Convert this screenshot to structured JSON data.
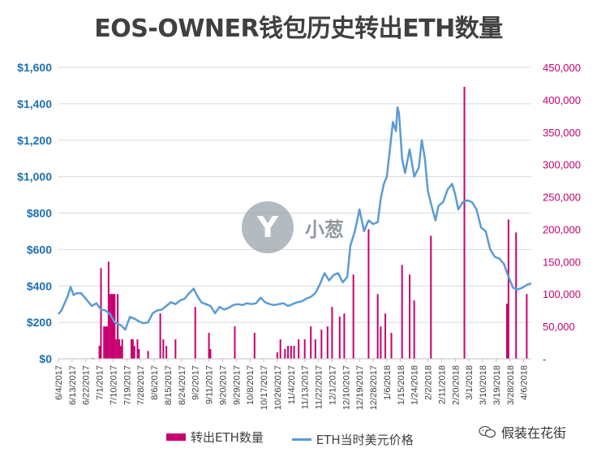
{
  "colors": {
    "bar": "#c8006e",
    "line": "#5b9bd5",
    "left_axis": "#1f6fb0",
    "right_axis": "#c8006e",
    "grid": "#d9d9d9"
  },
  "watermark": {
    "glyph": "Y",
    "text": "小葱"
  },
  "brand": {
    "icon": "wechat-icon",
    "text": "假装在花街"
  },
  "chart_data": {
    "type": "bar",
    "title": "EOS-OWNER钱包历史转出ETH数量",
    "x_tick_labels": [
      "6/4/2017",
      "6/13/2017",
      "6/22/2017",
      "7/1/2017",
      "7/10/2017",
      "7/19/2017",
      "7/28/2017",
      "8/6/2017",
      "8/15/2017",
      "8/24/2017",
      "9/2/2017",
      "9/11/2017",
      "9/20/2017",
      "9/29/2017",
      "10/8/2017",
      "10/17/2017",
      "10/26/2017",
      "11/4/2017",
      "11/13/2017",
      "11/22/2017",
      "12/1/2017",
      "12/10/2017",
      "12/19/2017",
      "12/28/2017",
      "1/6/2018",
      "1/15/2018",
      "1/24/2018",
      "2/2/2018",
      "2/11/2018",
      "2/20/2018",
      "3/1/2018",
      "3/10/2018",
      "3/19/2018",
      "3/28/2018",
      "4/6/2018"
    ],
    "x_start": "2017-06-04",
    "x_end": "2018-04-11",
    "left_axis": {
      "ylim": [
        0,
        1600
      ],
      "ticks": [
        0,
        200,
        400,
        600,
        800,
        1000,
        1200,
        1400,
        1600
      ],
      "tick_labels": [
        "$0",
        "$200",
        "$400",
        "$600",
        "$800",
        "$1,000",
        "$1,200",
        "$1,400",
        "$1,600"
      ]
    },
    "right_axis": {
      "ylim": [
        0,
        450000
      ],
      "ticks": [
        0,
        50000,
        100000,
        150000,
        200000,
        250000,
        300000,
        350000,
        400000,
        450000
      ],
      "tick_labels": [
        "-",
        "50,000",
        "100,000",
        "150,000",
        "200,000",
        "250,000",
        "300,000",
        "350,000",
        "400,000",
        "450,000"
      ]
    },
    "grid": true,
    "legend_position": "bottom",
    "series": [
      {
        "name": "转出ETH数量",
        "type": "bar",
        "axis": "right",
        "points": [
          [
            "2017-06-26",
            1000
          ],
          [
            "2017-06-27",
            1000
          ],
          [
            "2017-07-01",
            20000
          ],
          [
            "2017-07-02",
            140000
          ],
          [
            "2017-07-04",
            50000
          ],
          [
            "2017-07-05",
            50000
          ],
          [
            "2017-07-06",
            50000
          ],
          [
            "2017-07-07",
            150000
          ],
          [
            "2017-07-08",
            100000
          ],
          [
            "2017-07-09",
            100000
          ],
          [
            "2017-07-10",
            100000
          ],
          [
            "2017-07-11",
            100000
          ],
          [
            "2017-07-12",
            30000
          ],
          [
            "2017-07-13",
            100000
          ],
          [
            "2017-07-14",
            30000
          ],
          [
            "2017-07-15",
            20000
          ],
          [
            "2017-07-16",
            30000
          ],
          [
            "2017-07-22",
            30000
          ],
          [
            "2017-07-23",
            30000
          ],
          [
            "2017-07-24",
            20000
          ],
          [
            "2017-07-26",
            30000
          ],
          [
            "2017-07-27",
            15000
          ],
          [
            "2017-08-02",
            12000
          ],
          [
            "2017-08-10",
            70000
          ],
          [
            "2017-08-12",
            30000
          ],
          [
            "2017-08-14",
            20000
          ],
          [
            "2017-08-20",
            30000
          ],
          [
            "2017-09-02",
            80000
          ],
          [
            "2017-09-11",
            40000
          ],
          [
            "2017-09-12",
            15000
          ],
          [
            "2017-09-28",
            50000
          ],
          [
            "2017-10-11",
            40000
          ],
          [
            "2017-10-26",
            10000
          ],
          [
            "2017-10-28",
            30000
          ],
          [
            "2017-10-31",
            15000
          ],
          [
            "2017-11-02",
            20000
          ],
          [
            "2017-11-04",
            20000
          ],
          [
            "2017-11-06",
            20000
          ],
          [
            "2017-11-09",
            30000
          ],
          [
            "2017-11-13",
            30000
          ],
          [
            "2017-11-17",
            50000
          ],
          [
            "2017-11-20",
            30000
          ],
          [
            "2017-11-24",
            45000
          ],
          [
            "2017-11-28",
            50000
          ],
          [
            "2017-12-01",
            80000
          ],
          [
            "2017-12-06",
            65000
          ],
          [
            "2017-12-09",
            70000
          ],
          [
            "2017-12-15",
            130000
          ],
          [
            "2017-12-25",
            200000
          ],
          [
            "2017-12-31",
            100000
          ],
          [
            "2018-01-02",
            50000
          ],
          [
            "2018-01-05",
            70000
          ],
          [
            "2018-01-09",
            40000
          ],
          [
            "2018-01-16",
            145000
          ],
          [
            "2018-01-21",
            130000
          ],
          [
            "2018-01-24",
            90000
          ],
          [
            "2018-02-04",
            190000
          ],
          [
            "2018-02-26",
            420000
          ],
          [
            "2018-03-26",
            85000
          ],
          [
            "2018-03-27",
            215000
          ],
          [
            "2018-04-01",
            195000
          ],
          [
            "2018-04-08",
            100000
          ]
        ]
      },
      {
        "name": "ETH当时美元价格",
        "type": "line",
        "axis": "left",
        "points": [
          [
            "2017-06-04",
            245
          ],
          [
            "2017-06-06",
            265
          ],
          [
            "2017-06-10",
            340
          ],
          [
            "2017-06-12",
            395
          ],
          [
            "2017-06-14",
            350
          ],
          [
            "2017-06-16",
            360
          ],
          [
            "2017-06-19",
            360
          ],
          [
            "2017-06-22",
            330
          ],
          [
            "2017-06-26",
            290
          ],
          [
            "2017-06-29",
            305
          ],
          [
            "2017-07-02",
            270
          ],
          [
            "2017-07-05",
            265
          ],
          [
            "2017-07-08",
            245
          ],
          [
            "2017-07-11",
            200
          ],
          [
            "2017-07-15",
            185
          ],
          [
            "2017-07-18",
            160
          ],
          [
            "2017-07-21",
            230
          ],
          [
            "2017-07-24",
            220
          ],
          [
            "2017-07-27",
            205
          ],
          [
            "2017-07-30",
            195
          ],
          [
            "2017-08-02",
            200
          ],
          [
            "2017-08-05",
            250
          ],
          [
            "2017-08-08",
            265
          ],
          [
            "2017-08-11",
            270
          ],
          [
            "2017-08-14",
            290
          ],
          [
            "2017-08-17",
            310
          ],
          [
            "2017-08-20",
            300
          ],
          [
            "2017-08-23",
            320
          ],
          [
            "2017-08-26",
            330
          ],
          [
            "2017-08-29",
            360
          ],
          [
            "2017-09-01",
            385
          ],
          [
            "2017-09-03",
            350
          ],
          [
            "2017-09-06",
            310
          ],
          [
            "2017-09-09",
            300
          ],
          [
            "2017-09-12",
            290
          ],
          [
            "2017-09-15",
            250
          ],
          [
            "2017-09-18",
            285
          ],
          [
            "2017-09-21",
            270
          ],
          [
            "2017-09-24",
            280
          ],
          [
            "2017-09-27",
            295
          ],
          [
            "2017-09-30",
            300
          ],
          [
            "2017-10-03",
            295
          ],
          [
            "2017-10-06",
            305
          ],
          [
            "2017-10-09",
            300
          ],
          [
            "2017-10-12",
            305
          ],
          [
            "2017-10-15",
            335
          ],
          [
            "2017-10-18",
            310
          ],
          [
            "2017-10-21",
            300
          ],
          [
            "2017-10-24",
            295
          ],
          [
            "2017-10-27",
            300
          ],
          [
            "2017-10-30",
            305
          ],
          [
            "2017-11-02",
            290
          ],
          [
            "2017-11-05",
            300
          ],
          [
            "2017-11-08",
            310
          ],
          [
            "2017-11-11",
            315
          ],
          [
            "2017-11-14",
            330
          ],
          [
            "2017-11-17",
            340
          ],
          [
            "2017-11-20",
            360
          ],
          [
            "2017-11-23",
            410
          ],
          [
            "2017-11-26",
            470
          ],
          [
            "2017-11-29",
            430
          ],
          [
            "2017-12-02",
            460
          ],
          [
            "2017-12-05",
            470
          ],
          [
            "2017-12-08",
            420
          ],
          [
            "2017-12-11",
            450
          ],
          [
            "2017-12-13",
            620
          ],
          [
            "2017-12-16",
            700
          ],
          [
            "2017-12-19",
            820
          ],
          [
            "2017-12-22",
            700
          ],
          [
            "2017-12-25",
            760
          ],
          [
            "2017-12-28",
            740
          ],
          [
            "2017-12-31",
            750
          ],
          [
            "2018-01-02",
            880
          ],
          [
            "2018-01-04",
            960
          ],
          [
            "2018-01-06",
            1000
          ],
          [
            "2018-01-08",
            1150
          ],
          [
            "2018-01-10",
            1300
          ],
          [
            "2018-01-12",
            1250
          ],
          [
            "2018-01-13",
            1380
          ],
          [
            "2018-01-14",
            1350
          ],
          [
            "2018-01-16",
            1100
          ],
          [
            "2018-01-18",
            1020
          ],
          [
            "2018-01-21",
            1150
          ],
          [
            "2018-01-24",
            1000
          ],
          [
            "2018-01-27",
            1050
          ],
          [
            "2018-01-29",
            1200
          ],
          [
            "2018-01-31",
            1100
          ],
          [
            "2018-02-02",
            920
          ],
          [
            "2018-02-05",
            820
          ],
          [
            "2018-02-07",
            760
          ],
          [
            "2018-02-09",
            840
          ],
          [
            "2018-02-12",
            860
          ],
          [
            "2018-02-15",
            930
          ],
          [
            "2018-02-18",
            960
          ],
          [
            "2018-02-20",
            900
          ],
          [
            "2018-02-22",
            820
          ],
          [
            "2018-02-25",
            860
          ],
          [
            "2018-02-28",
            870
          ],
          [
            "2018-03-03",
            860
          ],
          [
            "2018-03-06",
            820
          ],
          [
            "2018-03-09",
            720
          ],
          [
            "2018-03-12",
            700
          ],
          [
            "2018-03-15",
            600
          ],
          [
            "2018-03-18",
            560
          ],
          [
            "2018-03-21",
            550
          ],
          [
            "2018-03-24",
            520
          ],
          [
            "2018-03-27",
            450
          ],
          [
            "2018-03-30",
            390
          ],
          [
            "2018-04-02",
            380
          ],
          [
            "2018-04-05",
            390
          ],
          [
            "2018-04-08",
            405
          ],
          [
            "2018-04-11",
            415
          ]
        ]
      }
    ]
  }
}
